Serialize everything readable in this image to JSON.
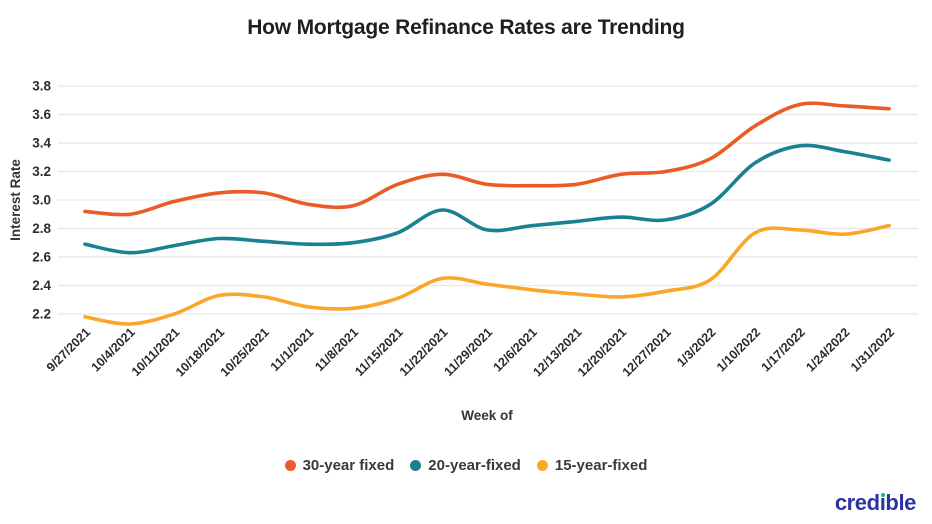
{
  "title": "How Mortgage Refinance Rates are Trending",
  "logo": {
    "text": "credible",
    "color": "#2b34a1",
    "accent_color": "#00c389"
  },
  "chart_data": {
    "type": "line",
    "title": "How Mortgage Refinance Rates are Trending",
    "xlabel": "Week of",
    "ylabel": "Interest Rate",
    "ylim": [
      2.05,
      3.85
    ],
    "grid": true,
    "grid_color": "#e8e8e8",
    "legend_position": "bottom",
    "yticks": [
      "3.8",
      "3.6",
      "3.4",
      "3.2",
      "3.0",
      "2.8",
      "2.6",
      "2.4",
      "2.2"
    ],
    "categories": [
      "9/27/2021",
      "10/4/2021",
      "10/11/2021",
      "10/18/2021",
      "10/25/2021",
      "11/1/2021",
      "11/8/2021",
      "11/15/2021",
      "11/22/2021",
      "11/29/2021",
      "12/6/2021",
      "12/13/2021",
      "12/20/2021",
      "12/27/2021",
      "1/3/2022",
      "1/10/2022",
      "1/17/2022",
      "1/24/2022",
      "1/31/2022"
    ],
    "series": [
      {
        "name": "30-year fixed",
        "color": "#ea5b27",
        "values": [
          2.92,
          2.9,
          2.99,
          3.05,
          3.05,
          2.97,
          2.96,
          3.11,
          3.18,
          3.11,
          3.1,
          3.11,
          3.18,
          3.2,
          3.29,
          3.52,
          3.67,
          3.66,
          3.64
        ]
      },
      {
        "name": "20-year-fixed",
        "color": "#1a8193",
        "values": [
          2.69,
          2.63,
          2.68,
          2.73,
          2.71,
          2.69,
          2.7,
          2.77,
          2.93,
          2.79,
          2.82,
          2.85,
          2.88,
          2.86,
          2.97,
          3.26,
          3.38,
          3.34,
          3.28
        ]
      },
      {
        "name": "15-year-fixed",
        "color": "#faa628",
        "values": [
          2.18,
          2.13,
          2.2,
          2.33,
          2.32,
          2.25,
          2.24,
          2.31,
          2.45,
          2.41,
          2.37,
          2.34,
          2.32,
          2.36,
          2.44,
          2.77,
          2.79,
          2.76,
          2.82
        ]
      }
    ]
  }
}
